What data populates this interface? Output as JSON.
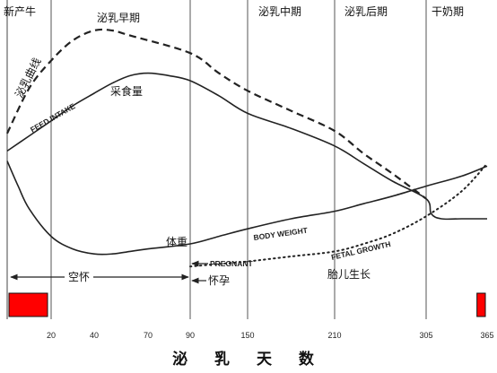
{
  "chart_data": {
    "type": "line",
    "x_ticks": [
      20,
      40,
      70,
      90,
      150,
      210,
      305,
      365
    ],
    "xlabel": "泌 乳 天 数",
    "stages": [
      {
        "label": "新产牛",
        "at": 0
      },
      {
        "label": "泌乳早期",
        "at": 60
      },
      {
        "label": "泌乳中期",
        "at": 150
      },
      {
        "label": "泌乳后期",
        "at": 210
      },
      {
        "label": "干奶期",
        "at": 305
      }
    ],
    "series": [
      {
        "name": "泌乳曲线",
        "style": "dashed",
        "x": [
          0,
          10,
          20,
          30,
          40,
          50,
          60,
          90,
          120,
          150,
          180,
          210,
          240,
          270,
          305,
          340,
          365
        ],
        "y": [
          54,
          72,
          83,
          91,
          95,
          95,
          93,
          86,
          78,
          71,
          63,
          55,
          46,
          38,
          28,
          null,
          null
        ]
      },
      {
        "name": "采食量",
        "english_label": "FEED INTAKE",
        "style": "solid",
        "x": [
          0,
          10,
          20,
          30,
          40,
          50,
          60,
          70,
          80,
          90,
          120,
          150,
          180,
          210,
          240,
          270,
          305,
          310,
          320,
          340,
          365
        ],
        "y": [
          47,
          53,
          59,
          65,
          70,
          74,
          77,
          78,
          77,
          75,
          69,
          62,
          56,
          49,
          42,
          35,
          28,
          22,
          20,
          20,
          20
        ]
      },
      {
        "name": "体重",
        "english_label": "BODY WEIGHT",
        "style": "solid",
        "x": [
          0,
          5,
          10,
          20,
          30,
          40,
          50,
          60,
          70,
          90,
          120,
          150,
          180,
          210,
          240,
          270,
          305,
          340,
          365
        ],
        "y": [
          43,
          33,
          24,
          13,
          8,
          6,
          6,
          7,
          8,
          10,
          13,
          16,
          20,
          23,
          26,
          29,
          33,
          37,
          41
        ]
      },
      {
        "name": "胎儿生长",
        "english_label": "FETAL GROWTH",
        "style": "dotted",
        "x": [
          90,
          120,
          150,
          180,
          210,
          240,
          270,
          305,
          340,
          365
        ],
        "y": [
          1,
          2,
          3,
          5,
          7,
          10,
          14,
          21,
          31,
          42
        ]
      }
    ],
    "annotations": [
      {
        "text": "空怀",
        "range": [
          0,
          90
        ]
      },
      {
        "text": "PREGNANT",
        "at": 90
      },
      {
        "text": "怀孕",
        "at": 90
      }
    ],
    "dry_period_markers": [
      {
        "range": [
          0,
          20
        ],
        "color": "#ff0000"
      },
      {
        "range": [
          355,
          365
        ],
        "color": "#ff0000"
      }
    ],
    "vertical_lines": [
      20,
      90,
      150,
      210,
      305
    ]
  }
}
